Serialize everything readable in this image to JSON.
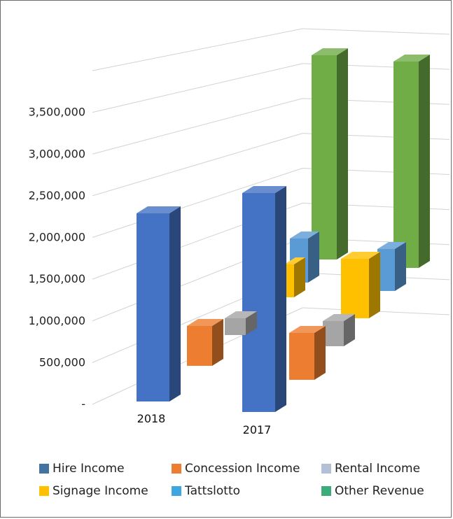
{
  "chart_data": {
    "type": "bar",
    "subtype": "3d-column",
    "categories": [
      "2018",
      "2017"
    ],
    "yticks": [
      "-",
      "500,000",
      "1,000,000",
      "1,500,000",
      "2,000,000",
      "2,500,000",
      "3,000,000",
      "3,500,000"
    ],
    "ylim": [
      0,
      4000000
    ],
    "grid": true,
    "legend_position": "bottom",
    "series": [
      {
        "name": "Hire Income",
        "values": [
          2350000,
          2720000
        ],
        "color": "#4472C4"
      },
      {
        "name": "Concession Income",
        "values": [
          450000,
          520000
        ],
        "color": "#ED7D31"
      },
      {
        "name": "Rental Income",
        "values": [
          150000,
          250000
        ],
        "color": "#A5A5A5"
      },
      {
        "name": "Signage Income",
        "values": [
          300000,
          700000
        ],
        "color": "#FFC000"
      },
      {
        "name": "Tattslotto",
        "values": [
          550000,
          600000
        ],
        "color": "#5B9BD5"
      },
      {
        "name": "Other Revenue",
        "values": [
          2700000,
          2600000
        ],
        "color": "#70AD47"
      }
    ]
  },
  "legend": {
    "swatch_colors": [
      "#44739f",
      "#ED7D31",
      "#b4c0d6",
      "#FFC000",
      "#3fa6e0",
      "#3cac7a"
    ]
  }
}
